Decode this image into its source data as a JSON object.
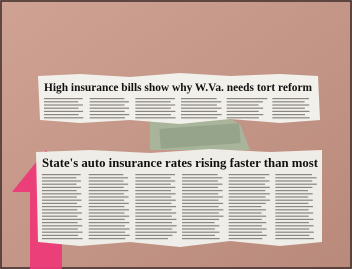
{
  "clippings": [
    {
      "headline": "High insurance bills show why W.Va. needs tort reform"
    },
    {
      "headline": "State's auto insurance rates rising faster than most"
    }
  ]
}
